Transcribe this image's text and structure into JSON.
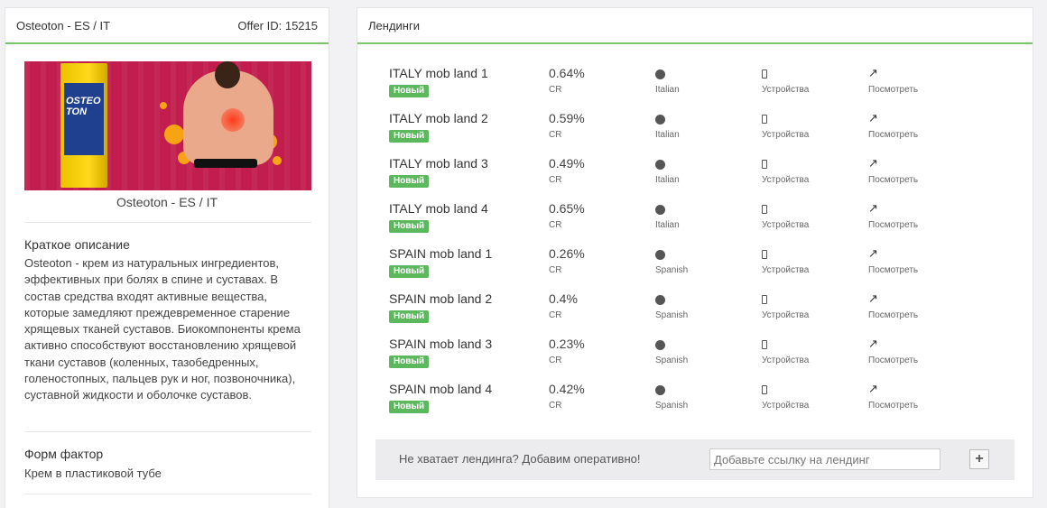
{
  "offer": {
    "title": "Osteoton - ES / IT",
    "offer_id": "Offer ID: 15215",
    "image_caption": "Osteoton - ES / IT",
    "short_desc_title": "Краткое описание",
    "short_desc_text": "Osteoton - крем из натуральных ингредиентов, эффективных при болях в спине и суставах. В состав средства входят активные вещества, которые замедляют преждевременное старение хрящевых тканей суставов. Биокомпоненты крема активно способствуют восстановлению хрящевой ткани суставов (коленных, тазобедренных, голеностопных, пальцев рук и ног, позвоночника), суставной жидкости и оболочке суставов.",
    "form_factor_title": "Форм фактор",
    "form_factor_text": "Крем в пластиковой тубе"
  },
  "landings": {
    "title": "Лендинги",
    "cr_label": "CR",
    "devices_label": "Устройства",
    "view_label": "Посмотреть",
    "badge_label": "Новый",
    "rows": [
      {
        "name": "ITALY mob land 1",
        "cr": "0.64%",
        "lang": "Italian"
      },
      {
        "name": "ITALY mob land 2",
        "cr": "0.59%",
        "lang": "Italian"
      },
      {
        "name": "ITALY mob land 3",
        "cr": "0.49%",
        "lang": "Italian"
      },
      {
        "name": "ITALY mob land 4",
        "cr": "0.65%",
        "lang": "Italian"
      },
      {
        "name": "SPAIN mob land 1",
        "cr": "0.26%",
        "lang": "Spanish"
      },
      {
        "name": "SPAIN mob land 2",
        "cr": "0.4%",
        "lang": "Spanish"
      },
      {
        "name": "SPAIN mob land 3",
        "cr": "0.23%",
        "lang": "Spanish"
      },
      {
        "name": "SPAIN mob land 4",
        "cr": "0.42%",
        "lang": "Spanish"
      }
    ],
    "missing_prompt": "Не хватает лендинга? Добавим оперативно!",
    "add_placeholder": "Добавьте ссылку на лендинг",
    "add_button": "+"
  },
  "product_box": {
    "line1": "OSTEO",
    "line2": "TON"
  },
  "icons": {
    "language": "globe-icon",
    "devices": "mobile-icon",
    "view": "external-link-icon"
  },
  "colors": {
    "accent": "#7bc46b",
    "badge": "#5cb85c",
    "banner": "#c11d4e"
  }
}
